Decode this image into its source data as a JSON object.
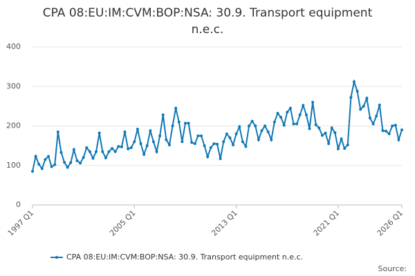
{
  "chart_data": {
    "type": "line",
    "title": "CPA 08:EU:IM:CVM:BOP:NSA: 30.9. Transport equipment n.e.c.",
    "source": "Source:",
    "categories": [
      "1997 Q1",
      null,
      null,
      null,
      null,
      null,
      null,
      null,
      null,
      null,
      null,
      null,
      null,
      null,
      null,
      null,
      null,
      null,
      null,
      null,
      null,
      null,
      null,
      null,
      null,
      null,
      null,
      null,
      null,
      null,
      null,
      null,
      "2005 Q1",
      null,
      null,
      null,
      null,
      null,
      null,
      null,
      null,
      null,
      null,
      null,
      null,
      null,
      null,
      null,
      null,
      null,
      null,
      null,
      null,
      null,
      null,
      null,
      null,
      null,
      null,
      null,
      null,
      null,
      null,
      null,
      "2013 Q1",
      null,
      null,
      null,
      null,
      null,
      null,
      null,
      null,
      null,
      null,
      null,
      null,
      null,
      null,
      null,
      null,
      null,
      null,
      null,
      null,
      null,
      null,
      null,
      null,
      null,
      null,
      null,
      null,
      null,
      null,
      null,
      "2021 Q1",
      null,
      null,
      null,
      null,
      null,
      null,
      null,
      null,
      null,
      null,
      null,
      null,
      null,
      null,
      null,
      null,
      null,
      null,
      null,
      "2026 Q1"
    ],
    "series": [
      {
        "name": "CPA 08:EU:IM:CVM:BOP:NSA: 30.9. Transport equipment n.e.c.",
        "color": "#0f77b5",
        "values": [
          85,
          123,
          103,
          92,
          115,
          123,
          97,
          102,
          185,
          133,
          108,
          95,
          107,
          140,
          112,
          106,
          120,
          145,
          135,
          118,
          135,
          182,
          135,
          119,
          135,
          143,
          135,
          148,
          147,
          185,
          142,
          145,
          160,
          192,
          155,
          128,
          150,
          188,
          160,
          135,
          175,
          228,
          165,
          152,
          200,
          245,
          210,
          160,
          207,
          207,
          158,
          155,
          175,
          175,
          150,
          122,
          145,
          155,
          154,
          117,
          160,
          180,
          170,
          152,
          180,
          198,
          160,
          148,
          200,
          212,
          200,
          165,
          188,
          200,
          185,
          165,
          210,
          232,
          222,
          202,
          235,
          245,
          205,
          205,
          228,
          252,
          228,
          193,
          260,
          203,
          195,
          176,
          182,
          155,
          195,
          183,
          142,
          167,
          143,
          152,
          272,
          312,
          288,
          242,
          250,
          270,
          220,
          205,
          225,
          253,
          188,
          187,
          180,
          200,
          202,
          165,
          190
        ]
      }
    ],
    "ylim": [
      0,
      400
    ],
    "yticks": [
      0,
      100,
      200,
      300,
      400
    ],
    "grid": true
  }
}
